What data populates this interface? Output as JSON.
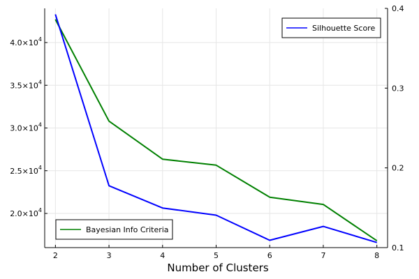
{
  "chart_data": {
    "type": "line",
    "x": [
      2,
      3,
      4,
      5,
      6,
      7,
      8
    ],
    "xlabel": "Number of Clusters",
    "xticks": [
      "2",
      "3",
      "4",
      "5",
      "6",
      "7",
      "8"
    ],
    "xlim": [
      1.8,
      8.2
    ],
    "grid": true,
    "left_axis": {
      "ylim": [
        16000,
        44000
      ],
      "ticks": [
        {
          "value": 20000,
          "mantissa": "2.0",
          "exp": "4"
        },
        {
          "value": 25000,
          "mantissa": "2.5",
          "exp": "4"
        },
        {
          "value": 30000,
          "mantissa": "3.0",
          "exp": "4"
        },
        {
          "value": 35000,
          "mantissa": "3.5",
          "exp": "4"
        },
        {
          "value": 40000,
          "mantissa": "4.0",
          "exp": "4"
        }
      ]
    },
    "right_axis": {
      "ylim": [
        0.1,
        0.4
      ],
      "ticks": [
        "0.1",
        "0.2",
        "0.3",
        "0.4"
      ]
    },
    "series": [
      {
        "name": "Bayesian Info Criteria",
        "axis": "left",
        "color": "#008000",
        "values": [
          42700,
          30800,
          26350,
          25650,
          21900,
          21050,
          16800
        ],
        "legend_position": "bottom-left"
      },
      {
        "name": "Silhouette Score",
        "axis": "right",
        "color": "#0000ff",
        "values": [
          0.3925,
          0.1776,
          0.1497,
          0.1407,
          0.1092,
          0.1266,
          0.1064
        ],
        "legend_position": "top-right"
      }
    ]
  }
}
